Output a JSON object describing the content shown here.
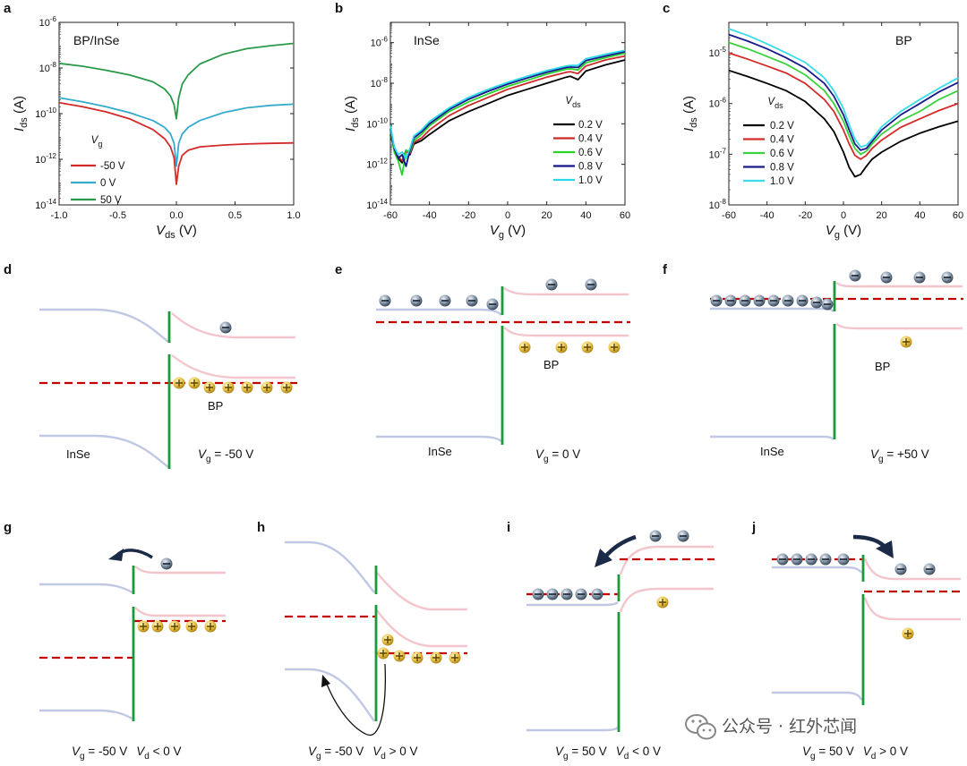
{
  "panel_letters": [
    "a",
    "b",
    "c",
    "d",
    "e",
    "f",
    "g",
    "h",
    "i",
    "j"
  ],
  "colors": {
    "vb": "#c0c8e4",
    "cb": "#f2c6cc",
    "fermi": "#c00000",
    "junction": "#1a9a3a",
    "arrow": "#1b2a47"
  },
  "chart_data": [
    {
      "type": "line",
      "panel": "a",
      "title": "BP/InSe",
      "xlabel": {
        "main": "V",
        "sub": "ds",
        "unit": " (V)"
      },
      "ylabel": {
        "main": "I",
        "sub": "ds",
        "unit": " (A)"
      },
      "log_y": true,
      "xlim": [
        -1.0,
        1.0
      ],
      "ylim": [
        1e-14,
        1e-06
      ],
      "xticks": [
        "-1.0",
        "-0.5",
        "0.0",
        "0.5",
        "1.0"
      ],
      "yticks": [
        {
          "m": "10",
          "e": "-14"
        },
        {
          "m": "10",
          "e": "-12"
        },
        {
          "m": "10",
          "e": "-10"
        },
        {
          "m": "10",
          "e": "-8"
        },
        {
          "m": "10",
          "e": "-6"
        }
      ],
      "legend_title": {
        "main": "V",
        "sub": "g"
      },
      "series": [
        {
          "name": "-50 V",
          "color": "#d42a2a",
          "x": [
            -1.0,
            -0.8,
            -0.6,
            -0.4,
            -0.2,
            -0.1,
            -0.05,
            -0.02,
            0.0,
            0.02,
            0.05,
            0.1,
            0.2,
            0.4,
            0.6,
            0.8,
            1.0
          ],
          "y": [
            3e-10,
            2e-10,
            1.2e-10,
            6e-11,
            2e-11,
            8e-12,
            3.5e-12,
            1.2e-12,
            8e-14,
            5e-13,
            1.5e-12,
            2.5e-12,
            3.5e-12,
            4.2e-12,
            4.7e-12,
            5e-12,
            5.2e-12
          ]
        },
        {
          "name": "0 V",
          "color": "#35aacc",
          "x": [
            -1.0,
            -0.8,
            -0.6,
            -0.4,
            -0.2,
            -0.1,
            -0.05,
            -0.02,
            0.0,
            0.02,
            0.05,
            0.1,
            0.2,
            0.4,
            0.6,
            0.8,
            1.0
          ],
          "y": [
            5e-10,
            3.3e-10,
            2e-10,
            1.1e-10,
            5e-11,
            2.5e-11,
            1.3e-11,
            5e-12,
            5e-13,
            5e-12,
            1.3e-11,
            2.5e-11,
            5e-11,
            1.1e-10,
            1.8e-10,
            2.3e-10,
            2.6e-10
          ]
        },
        {
          "name": "50 V",
          "color": "#2a9a4a",
          "x": [
            -1.0,
            -0.8,
            -0.6,
            -0.4,
            -0.2,
            -0.1,
            -0.05,
            -0.02,
            0.0,
            0.02,
            0.05,
            0.1,
            0.2,
            0.4,
            0.6,
            0.8,
            1.0
          ],
          "y": [
            1.6e-08,
            1.2e-08,
            8e-09,
            5e-09,
            2.5e-09,
            1.2e-09,
            6e-10,
            2.5e-10,
            6e-11,
            5e-10,
            2e-09,
            5e-09,
            1.5e-08,
            4e-08,
            7e-08,
            9.5e-08,
            1.2e-07
          ]
        }
      ]
    },
    {
      "type": "line",
      "panel": "b",
      "title": "InSe",
      "xlabel": {
        "main": "V",
        "sub": "g",
        "unit": " (V)"
      },
      "ylabel": {
        "main": "I",
        "sub": "ds",
        "unit": " (A)"
      },
      "log_y": true,
      "xlim": [
        -60,
        60
      ],
      "ylim": [
        1e-14,
        1e-05
      ],
      "xticks": [
        "-60",
        "-40",
        "-20",
        "0",
        "20",
        "40",
        "60"
      ],
      "yticks": [
        {
          "m": "10",
          "e": "-14"
        },
        {
          "m": "10",
          "e": "-12"
        },
        {
          "m": "10",
          "e": "-10"
        },
        {
          "m": "10",
          "e": "-8"
        },
        {
          "m": "10",
          "e": "-6"
        }
      ],
      "legend_title": {
        "main": "V",
        "sub": "ds"
      },
      "series": [
        {
          "name": "0.2 V",
          "color": "#000000",
          "x": [
            -60,
            -58,
            -56,
            -54,
            -52,
            -50,
            -48,
            -44,
            -40,
            -30,
            -20,
            -10,
            0,
            10,
            20,
            30,
            32,
            36,
            40,
            50,
            60
          ],
          "y": [
            3e-11,
            5e-12,
            2e-12,
            1.2e-12,
            5e-12,
            3e-12,
            1e-11,
            1.5e-11,
            3e-11,
            1.4e-10,
            4e-10,
            1e-09,
            2.5e-09,
            5e-09,
            1e-08,
            2e-08,
            2.2e-08,
            1.5e-08,
            4e-08,
            8e-08,
            1.4e-07
          ]
        },
        {
          "name": "0.4 V",
          "color": "#cc2a2a",
          "x": [
            -60,
            -58,
            -56,
            -54,
            -52,
            -50,
            -48,
            -44,
            -40,
            -30,
            -20,
            -10,
            0,
            10,
            20,
            30,
            32,
            36,
            40,
            50,
            60
          ],
          "y": [
            4e-11,
            6e-12,
            2.5e-12,
            1.5e-12,
            4e-12,
            3.5e-12,
            1.2e-11,
            2e-11,
            5e-11,
            2.5e-10,
            8e-10,
            2e-09,
            5e-09,
            1e-08,
            2e-08,
            3.5e-08,
            3.7e-08,
            3e-08,
            7e-08,
            1.4e-07,
            2.2e-07
          ]
        },
        {
          "name": "0.6 V",
          "color": "#2ad22a",
          "x": [
            -60,
            -58,
            -56,
            -54,
            -52,
            -50,
            -48,
            -44,
            -40,
            -30,
            -20,
            -10,
            0,
            10,
            20,
            30,
            32,
            36,
            40,
            50,
            60
          ],
          "y": [
            5e-11,
            4e-12,
            1.5e-12,
            3e-13,
            5e-12,
            4e-12,
            1.5e-11,
            3e-11,
            8e-11,
            4e-10,
            1.2e-09,
            3e-09,
            7e-09,
            1.4e-08,
            2.8e-08,
            5e-08,
            5.2e-08,
            4.5e-08,
            1e-07,
            1.8e-07,
            3e-07
          ]
        },
        {
          "name": "0.8 V",
          "color": "#14148c",
          "x": [
            -60,
            -58,
            -56,
            -54,
            -52,
            -50,
            -48,
            -44,
            -40,
            -30,
            -20,
            -10,
            0,
            10,
            20,
            30,
            32,
            36,
            40,
            50,
            60
          ],
          "y": [
            6e-11,
            6e-12,
            2e-12,
            3e-12,
            8e-13,
            5e-12,
            2e-11,
            4e-11,
            1e-10,
            5e-10,
            1.6e-09,
            4e-09,
            9e-09,
            1.8e-08,
            3.5e-08,
            6e-08,
            6.3e-08,
            6e-08,
            1.3e-07,
            2.2e-07,
            3.6e-07
          ]
        },
        {
          "name": "1.0 V",
          "color": "#2ad8e8",
          "x": [
            -60,
            -58,
            -56,
            -54,
            -52,
            -50,
            -48,
            -44,
            -40,
            -30,
            -20,
            -10,
            0,
            10,
            20,
            30,
            32,
            36,
            40,
            50,
            60
          ],
          "y": [
            8e-11,
            7e-12,
            3e-12,
            4e-12,
            2e-12,
            6e-12,
            2.5e-11,
            5e-11,
            1.3e-10,
            6e-10,
            2e-09,
            5e-09,
            1.1e-08,
            2.2e-08,
            4.2e-08,
            7e-08,
            7.5e-08,
            7.5e-08,
            1.6e-07,
            2.7e-07,
            4.2e-07
          ]
        }
      ]
    },
    {
      "type": "line",
      "panel": "c",
      "title": "BP",
      "xlabel": {
        "main": "V",
        "sub": "g",
        "unit": " (V)"
      },
      "ylabel": {
        "main": "I",
        "sub": "ds",
        "unit": " (A)"
      },
      "log_y": true,
      "xlim": [
        -60,
        60
      ],
      "ylim": [
        1e-08,
        4e-05
      ],
      "xticks": [
        "-60",
        "-40",
        "-20",
        "0",
        "20",
        "40",
        "60"
      ],
      "yticks": [
        {
          "m": "10",
          "e": "-8"
        },
        {
          "m": "10",
          "e": "-7"
        },
        {
          "m": "10",
          "e": "-6"
        },
        {
          "m": "10",
          "e": "-5"
        }
      ],
      "legend_title": {
        "main": "V",
        "sub": "ds"
      },
      "series": [
        {
          "name": "0.2 V",
          "color": "#000000",
          "x": [
            -60,
            -50,
            -40,
            -30,
            -20,
            -10,
            -5,
            0,
            3,
            6,
            9,
            12,
            15,
            20,
            30,
            40,
            50,
            60
          ],
          "y": [
            4.5e-06,
            3.4e-06,
            2.5e-06,
            1.8e-06,
            1.1e-06,
            5e-07,
            2.8e-07,
            1.1e-07,
            5.5e-08,
            3.6e-08,
            4e-08,
            5.8e-08,
            8e-08,
            1.1e-07,
            1.8e-07,
            2.6e-07,
            3.5e-07,
            4.5e-07
          ]
        },
        {
          "name": "0.4 V",
          "color": "#d42a2a",
          "x": [
            -60,
            -50,
            -40,
            -30,
            -20,
            -10,
            -5,
            0,
            3,
            6,
            9,
            12,
            15,
            20,
            30,
            40,
            50,
            60
          ],
          "y": [
            1e-05,
            7.5e-06,
            5.5e-06,
            4e-06,
            2.5e-06,
            1.2e-06,
            7e-07,
            3e-07,
            1.6e-07,
            9.5e-08,
            8e-08,
            9.5e-08,
            1.3e-07,
            1.9e-07,
            3.4e-07,
            5e-07,
            7.3e-07,
            1e-06
          ]
        },
        {
          "name": "0.6 V",
          "color": "#3ad23a",
          "x": [
            -60,
            -50,
            -40,
            -30,
            -20,
            -10,
            -5,
            0,
            3,
            6,
            9,
            12,
            15,
            20,
            30,
            40,
            50,
            60
          ],
          "y": [
            1.6e-05,
            1.2e-05,
            8.5e-06,
            6e-06,
            3.7e-06,
            1.8e-06,
            1e-06,
            4.5e-07,
            2.3e-07,
            1.3e-07,
            1e-07,
            1.15e-07,
            1.6e-07,
            2.5e-07,
            4.6e-07,
            7e-07,
            1.2e-06,
            1.8e-06
          ]
        },
        {
          "name": "0.8 V",
          "color": "#1a1a8c",
          "x": [
            -60,
            -50,
            -40,
            -30,
            -20,
            -10,
            -5,
            0,
            3,
            6,
            9,
            12,
            15,
            20,
            30,
            40,
            50,
            60
          ],
          "y": [
            2.3e-05,
            1.7e-05,
            1.2e-05,
            8e-06,
            5e-06,
            2.5e-06,
            1.4e-06,
            6e-07,
            3e-07,
            1.6e-07,
            1.2e-07,
            1.3e-07,
            1.8e-07,
            3e-07,
            6e-07,
            1e-06,
            1.7e-06,
            2.6e-06
          ]
        },
        {
          "name": "1.0 V",
          "color": "#3adcea",
          "x": [
            -60,
            -50,
            -40,
            -30,
            -20,
            -10,
            -5,
            0,
            3,
            6,
            9,
            12,
            15,
            20,
            30,
            40,
            50,
            60
          ],
          "y": [
            3e-05,
            2.2e-05,
            1.5e-05,
            1e-05,
            6.5e-06,
            3.2e-06,
            1.8e-06,
            8e-07,
            3.8e-07,
            2e-07,
            1.4e-07,
            1.5e-07,
            2e-07,
            3.5e-07,
            7e-07,
            1.2e-06,
            2e-06,
            3.2e-06
          ]
        }
      ]
    }
  ],
  "band_labels": {
    "inse": "InSe",
    "bp": "BP"
  },
  "captions": {
    "d": {
      "v": "V",
      "s": "g",
      "r": " = -50 V"
    },
    "e": {
      "v": "V",
      "s": "g",
      "r": " = 0 V"
    },
    "f": {
      "v": "V",
      "s": "g",
      "r": " = +50 V"
    },
    "g": [
      {
        "v": "V",
        "s": "g",
        "r": " = -50 V"
      },
      {
        "v": "V",
        "s": "d",
        "r": " < 0 V"
      }
    ],
    "h": [
      {
        "v": "V",
        "s": "g",
        "r": " = -50 V"
      },
      {
        "v": "V",
        "s": "d",
        "r": " > 0 V"
      }
    ],
    "i": [
      {
        "v": "V",
        "s": "g",
        "r": " = 50 V"
      },
      {
        "v": "V",
        "s": "d",
        "r": " < 0 V"
      }
    ],
    "j": [
      {
        "v": "V",
        "s": "g",
        "r": " = 50 V"
      },
      {
        "v": "V",
        "s": "d",
        "r": " > 0 V"
      }
    ]
  },
  "watermark": "公众号 · 红外芯闻"
}
